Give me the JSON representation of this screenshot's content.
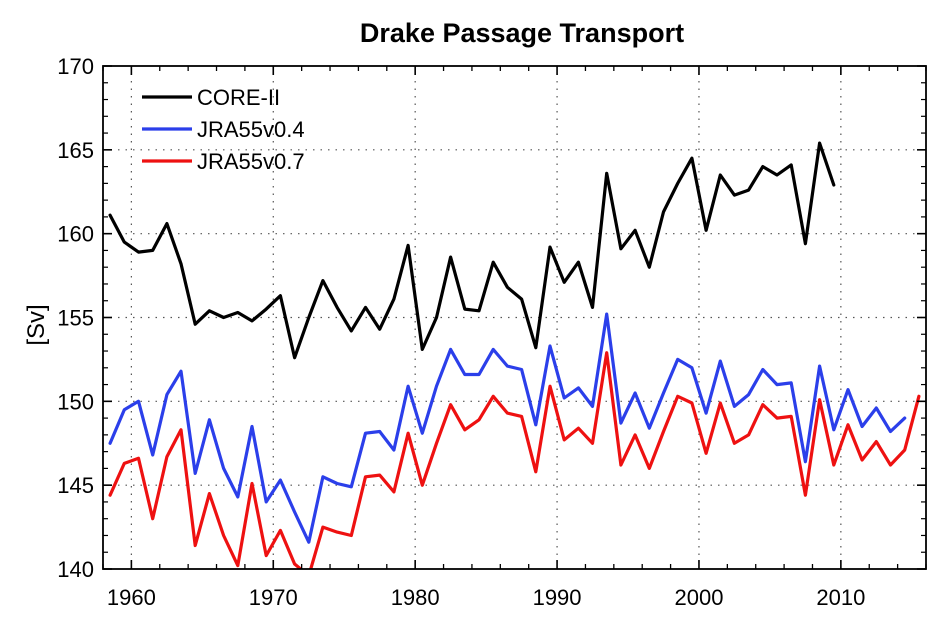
{
  "chart_data": {
    "type": "line",
    "title": "Drake Passage Transport",
    "xlabel": "",
    "ylabel": "[Sv]",
    "xlim": [
      1958,
      2016
    ],
    "ylim": [
      140,
      170
    ],
    "xticks": [
      1960,
      1970,
      1980,
      1990,
      2000,
      2010
    ],
    "yticks": [
      140,
      145,
      150,
      155,
      160,
      165,
      170
    ],
    "xtick_labels": [
      "1960",
      "1970",
      "1980",
      "1990",
      "2000",
      "2010"
    ],
    "ytick_labels": [
      "140",
      "145",
      "150",
      "155",
      "160",
      "165",
      "170"
    ],
    "grid": true,
    "legend_position": "top-left",
    "series": [
      {
        "name": "CORE-II",
        "color": "#000000",
        "x": [
          1958.5,
          1959.5,
          1960.5,
          1961.5,
          1962.5,
          1963.5,
          1964.5,
          1965.5,
          1966.5,
          1967.5,
          1968.5,
          1969.5,
          1970.5,
          1971.5,
          1972.5,
          1973.5,
          1974.5,
          1975.5,
          1976.5,
          1977.5,
          1978.5,
          1979.5,
          1980.5,
          1981.5,
          1982.5,
          1983.5,
          1984.5,
          1985.5,
          1986.5,
          1987.5,
          1988.5,
          1989.5,
          1990.5,
          1991.5,
          1992.5,
          1993.5,
          1994.5,
          1995.5,
          1996.5,
          1997.5,
          1998.5,
          1999.5,
          2000.5,
          2001.5,
          2002.5,
          2003.5,
          2004.5,
          2005.5,
          2006.5,
          2007.5,
          2008.5,
          2009.5
        ],
        "values": [
          161.1,
          159.5,
          158.9,
          159.0,
          160.6,
          158.2,
          154.6,
          155.4,
          155.0,
          155.3,
          154.8,
          155.5,
          156.3,
          152.6,
          155.0,
          157.2,
          155.6,
          154.2,
          155.6,
          154.3,
          156.1,
          159.3,
          153.1,
          155.0,
          158.6,
          155.5,
          155.4,
          158.3,
          156.8,
          156.1,
          153.2,
          159.2,
          157.1,
          158.3,
          155.6,
          163.6,
          159.1,
          160.2,
          158.0,
          161.3,
          163.0,
          164.5,
          160.2,
          163.5,
          162.3,
          162.6,
          164.0,
          163.5,
          164.1,
          159.4,
          165.4,
          162.9
        ]
      },
      {
        "name": "JRA55v0.4",
        "color": "#2b3fea",
        "x": [
          1958.5,
          1959.5,
          1960.5,
          1961.5,
          1962.5,
          1963.5,
          1964.5,
          1965.5,
          1966.5,
          1967.5,
          1968.5,
          1969.5,
          1970.5,
          1971.5,
          1972.5,
          1973.5,
          1974.5,
          1975.5,
          1976.5,
          1977.5,
          1978.5,
          1979.5,
          1980.5,
          1981.5,
          1982.5,
          1983.5,
          1984.5,
          1985.5,
          1986.5,
          1987.5,
          1988.5,
          1989.5,
          1990.5,
          1991.5,
          1992.5,
          1993.5,
          1994.5,
          1995.5,
          1996.5,
          1997.5,
          1998.5,
          1999.5,
          2000.5,
          2001.5,
          2002.5,
          2003.5,
          2004.5,
          2005.5,
          2006.5,
          2007.5,
          2008.5,
          2009.5,
          2010.5,
          2011.5,
          2012.5,
          2013.5,
          2014.5
        ],
        "values": [
          147.5,
          149.5,
          150.0,
          146.8,
          150.4,
          151.8,
          145.7,
          148.9,
          146.0,
          144.3,
          148.5,
          144.0,
          145.3,
          143.4,
          141.6,
          145.5,
          145.1,
          144.9,
          148.1,
          148.2,
          147.1,
          150.9,
          148.1,
          150.9,
          153.1,
          151.6,
          151.6,
          153.1,
          152.1,
          151.9,
          148.6,
          153.3,
          150.2,
          150.8,
          149.7,
          155.2,
          148.7,
          150.5,
          148.4,
          150.5,
          152.5,
          152.0,
          149.3,
          152.4,
          149.7,
          150.4,
          151.9,
          151.0,
          151.1,
          146.4,
          152.1,
          148.3,
          150.7,
          148.5,
          149.6,
          148.2,
          149.0
        ]
      },
      {
        "name": "JRA55v0.7",
        "color": "#ee1111",
        "x": [
          1958.5,
          1959.5,
          1960.5,
          1961.5,
          1962.5,
          1963.5,
          1964.5,
          1965.5,
          1966.5,
          1967.5,
          1968.5,
          1969.5,
          1970.5,
          1971.5,
          1972.5,
          1973.5,
          1974.5,
          1975.5,
          1976.5,
          1977.5,
          1978.5,
          1979.5,
          1980.5,
          1981.5,
          1982.5,
          1983.5,
          1984.5,
          1985.5,
          1986.5,
          1987.5,
          1988.5,
          1989.5,
          1990.5,
          1991.5,
          1992.5,
          1993.5,
          1994.5,
          1995.5,
          1996.5,
          1997.5,
          1998.5,
          1999.5,
          2000.5,
          2001.5,
          2002.5,
          2003.5,
          2004.5,
          2005.5,
          2006.5,
          2007.5,
          2008.5,
          2009.5,
          2010.5,
          2011.5,
          2012.5,
          2013.5,
          2014.5,
          2015.5
        ],
        "values": [
          144.4,
          146.3,
          146.6,
          143.0,
          146.7,
          148.3,
          141.4,
          144.5,
          142.0,
          140.2,
          145.1,
          140.8,
          142.3,
          140.3,
          139.6,
          142.5,
          142.2,
          142.0,
          145.5,
          145.6,
          144.6,
          148.1,
          145.0,
          147.5,
          149.8,
          148.3,
          148.9,
          150.3,
          149.3,
          149.1,
          145.8,
          150.9,
          147.7,
          148.4,
          147.5,
          152.9,
          146.2,
          148.0,
          146.0,
          148.2,
          150.3,
          149.9,
          146.9,
          149.9,
          147.5,
          148.0,
          149.8,
          149.0,
          149.1,
          144.4,
          150.1,
          146.2,
          148.6,
          146.5,
          147.6,
          146.2,
          147.1,
          150.3
        ]
      }
    ]
  }
}
